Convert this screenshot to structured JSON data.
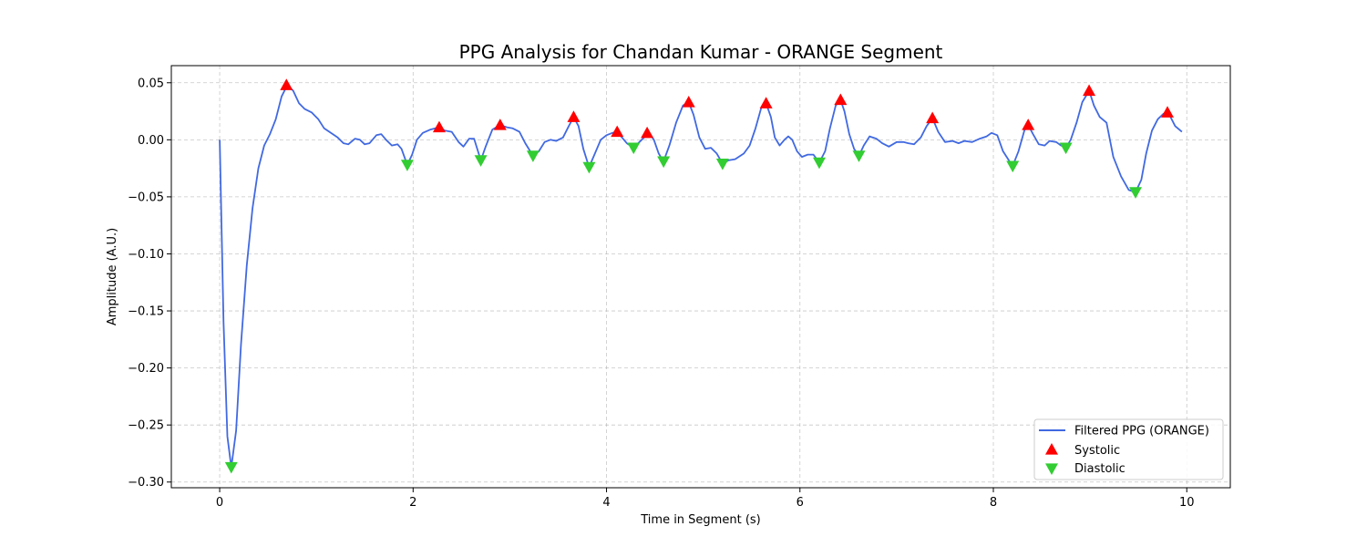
{
  "chart_data": {
    "type": "line",
    "title": "PPG Analysis for Chandan Kumar - ORANGE Segment",
    "xlabel": "Time in Segment (s)",
    "ylabel": "Amplitude (A.U.)",
    "xlim": [
      -0.5,
      10.45
    ],
    "ylim": [
      -0.305,
      0.065
    ],
    "xticks": [
      0,
      2,
      4,
      6,
      8,
      10
    ],
    "xtick_labels": [
      "0",
      "2",
      "4",
      "6",
      "8",
      "10"
    ],
    "yticks": [
      0.05,
      0.0,
      -0.05,
      -0.1,
      -0.15,
      -0.2,
      -0.25,
      -0.3
    ],
    "ytick_labels": [
      "0.05",
      "0.00",
      "−0.05",
      "−0.10",
      "−0.15",
      "−0.20",
      "−0.25",
      "−0.30"
    ],
    "grid": true,
    "legend_position": "lower-right",
    "series": [
      {
        "name": "Filtered PPG (ORANGE)",
        "kind": "line",
        "color": "#4169e1",
        "points": [
          [
            0.0,
            0.0
          ],
          [
            0.04,
            -0.16
          ],
          [
            0.08,
            -0.26
          ],
          [
            0.12,
            -0.287
          ],
          [
            0.17,
            -0.255
          ],
          [
            0.22,
            -0.18
          ],
          [
            0.28,
            -0.11
          ],
          [
            0.34,
            -0.06
          ],
          [
            0.4,
            -0.025
          ],
          [
            0.46,
            -0.005
          ],
          [
            0.52,
            0.005
          ],
          [
            0.58,
            0.018
          ],
          [
            0.64,
            0.038
          ],
          [
            0.7,
            0.048
          ],
          [
            0.76,
            0.043
          ],
          [
            0.82,
            0.032
          ],
          [
            0.88,
            0.027
          ],
          [
            0.95,
            0.024
          ],
          [
            1.02,
            0.018
          ],
          [
            1.08,
            0.01
          ],
          [
            1.15,
            0.006
          ],
          [
            1.22,
            0.002
          ],
          [
            1.28,
            -0.003
          ],
          [
            1.33,
            -0.004
          ],
          [
            1.4,
            0.001
          ],
          [
            1.45,
            0.0
          ],
          [
            1.5,
            -0.004
          ],
          [
            1.55,
            -0.003
          ],
          [
            1.62,
            0.004
          ],
          [
            1.67,
            0.005
          ],
          [
            1.72,
            0.0
          ],
          [
            1.78,
            -0.005
          ],
          [
            1.84,
            -0.004
          ],
          [
            1.88,
            -0.008
          ],
          [
            1.94,
            -0.022
          ],
          [
            1.99,
            -0.013
          ],
          [
            2.04,
            0.0
          ],
          [
            2.1,
            0.006
          ],
          [
            2.18,
            0.009
          ],
          [
            2.27,
            0.011
          ],
          [
            2.33,
            0.008
          ],
          [
            2.4,
            0.007
          ],
          [
            2.47,
            -0.002
          ],
          [
            2.52,
            -0.006
          ],
          [
            2.58,
            0.001
          ],
          [
            2.63,
            0.001
          ],
          [
            2.7,
            -0.018
          ],
          [
            2.75,
            -0.006
          ],
          [
            2.82,
            0.009
          ],
          [
            2.9,
            0.013
          ],
          [
            2.97,
            0.011
          ],
          [
            3.03,
            0.01
          ],
          [
            3.1,
            0.007
          ],
          [
            3.16,
            -0.003
          ],
          [
            3.24,
            -0.014
          ],
          [
            3.3,
            -0.01
          ],
          [
            3.36,
            -0.002
          ],
          [
            3.42,
            0.0
          ],
          [
            3.48,
            -0.001
          ],
          [
            3.55,
            0.002
          ],
          [
            3.61,
            0.012
          ],
          [
            3.66,
            0.02
          ],
          [
            3.71,
            0.012
          ],
          [
            3.76,
            -0.008
          ],
          [
            3.82,
            -0.024
          ],
          [
            3.88,
            -0.012
          ],
          [
            3.94,
            0.0
          ],
          [
            4.0,
            0.004
          ],
          [
            4.06,
            0.006
          ],
          [
            4.11,
            0.007
          ],
          [
            4.16,
            0.002
          ],
          [
            4.21,
            -0.003
          ],
          [
            4.28,
            -0.007
          ],
          [
            4.34,
            -0.002
          ],
          [
            4.4,
            0.003
          ],
          [
            4.44,
            0.006
          ],
          [
            4.49,
            0.0
          ],
          [
            4.54,
            -0.012
          ],
          [
            4.59,
            -0.019
          ],
          [
            4.65,
            -0.005
          ],
          [
            4.72,
            0.015
          ],
          [
            4.79,
            0.03
          ],
          [
            4.85,
            0.033
          ],
          [
            4.9,
            0.022
          ],
          [
            4.96,
            0.002
          ],
          [
            5.02,
            -0.008
          ],
          [
            5.08,
            -0.007
          ],
          [
            5.14,
            -0.012
          ],
          [
            5.2,
            -0.021
          ],
          [
            5.26,
            -0.018
          ],
          [
            5.33,
            -0.017
          ],
          [
            5.42,
            -0.012
          ],
          [
            5.48,
            -0.005
          ],
          [
            5.54,
            0.01
          ],
          [
            5.6,
            0.028
          ],
          [
            5.65,
            0.032
          ],
          [
            5.7,
            0.02
          ],
          [
            5.74,
            0.002
          ],
          [
            5.79,
            -0.005
          ],
          [
            5.84,
            0.0
          ],
          [
            5.88,
            0.003
          ],
          [
            5.92,
            0.0
          ],
          [
            5.97,
            -0.01
          ],
          [
            6.02,
            -0.015
          ],
          [
            6.08,
            -0.013
          ],
          [
            6.14,
            -0.013
          ],
          [
            6.2,
            -0.02
          ],
          [
            6.26,
            -0.01
          ],
          [
            6.31,
            0.01
          ],
          [
            6.37,
            0.03
          ],
          [
            6.42,
            0.035
          ],
          [
            6.46,
            0.025
          ],
          [
            6.51,
            0.005
          ],
          [
            6.56,
            -0.008
          ],
          [
            6.61,
            -0.014
          ],
          [
            6.66,
            -0.005
          ],
          [
            6.72,
            0.003
          ],
          [
            6.79,
            0.001
          ],
          [
            6.85,
            -0.003
          ],
          [
            6.92,
            -0.006
          ],
          [
            7.0,
            -0.002
          ],
          [
            7.07,
            -0.002
          ],
          [
            7.12,
            -0.003
          ],
          [
            7.18,
            -0.004
          ],
          [
            7.25,
            0.002
          ],
          [
            7.31,
            0.012
          ],
          [
            7.37,
            0.019
          ],
          [
            7.43,
            0.007
          ],
          [
            7.5,
            -0.002
          ],
          [
            7.58,
            -0.001
          ],
          [
            7.64,
            -0.003
          ],
          [
            7.7,
            -0.001
          ],
          [
            7.78,
            -0.002
          ],
          [
            7.86,
            0.001
          ],
          [
            7.93,
            0.003
          ],
          [
            7.98,
            0.006
          ],
          [
            8.04,
            0.004
          ],
          [
            8.1,
            -0.01
          ],
          [
            8.16,
            -0.018
          ],
          [
            8.2,
            -0.023
          ],
          [
            8.26,
            -0.01
          ],
          [
            8.32,
            0.008
          ],
          [
            8.36,
            0.013
          ],
          [
            8.41,
            0.005
          ],
          [
            8.47,
            -0.004
          ],
          [
            8.53,
            -0.005
          ],
          [
            8.58,
            -0.001
          ],
          [
            8.65,
            -0.002
          ],
          [
            8.7,
            -0.005
          ],
          [
            8.75,
            -0.007
          ],
          [
            8.8,
            0.0
          ],
          [
            8.86,
            0.015
          ],
          [
            8.92,
            0.033
          ],
          [
            8.99,
            0.043
          ],
          [
            9.04,
            0.03
          ],
          [
            9.1,
            0.02
          ],
          [
            9.17,
            0.015
          ],
          [
            9.24,
            -0.015
          ],
          [
            9.32,
            -0.032
          ],
          [
            9.4,
            -0.044
          ],
          [
            9.47,
            -0.046
          ],
          [
            9.53,
            -0.035
          ],
          [
            9.58,
            -0.012
          ],
          [
            9.64,
            0.008
          ],
          [
            9.7,
            0.018
          ],
          [
            9.76,
            0.023
          ],
          [
            9.82,
            0.022
          ],
          [
            9.88,
            0.012
          ],
          [
            9.95,
            0.007
          ]
        ]
      },
      {
        "name": "Systolic",
        "kind": "marker-up",
        "color": "#ff0000",
        "points": [
          [
            0.69,
            0.048
          ],
          [
            2.27,
            0.011
          ],
          [
            2.9,
            0.013
          ],
          [
            3.66,
            0.02
          ],
          [
            4.11,
            0.007
          ],
          [
            4.42,
            0.006
          ],
          [
            4.85,
            0.033
          ],
          [
            5.65,
            0.032
          ],
          [
            6.42,
            0.035
          ],
          [
            7.37,
            0.019
          ],
          [
            8.36,
            0.013
          ],
          [
            8.99,
            0.043
          ],
          [
            9.8,
            0.024
          ]
        ]
      },
      {
        "name": "Diastolic",
        "kind": "marker-down",
        "color": "#32cd32",
        "points": [
          [
            0.12,
            -0.287
          ],
          [
            1.94,
            -0.022
          ],
          [
            2.7,
            -0.018
          ],
          [
            3.24,
            -0.014
          ],
          [
            3.82,
            -0.024
          ],
          [
            4.28,
            -0.007
          ],
          [
            4.59,
            -0.019
          ],
          [
            5.2,
            -0.021
          ],
          [
            6.2,
            -0.02
          ],
          [
            6.61,
            -0.014
          ],
          [
            8.2,
            -0.023
          ],
          [
            8.75,
            -0.007
          ],
          [
            9.47,
            -0.046
          ]
        ]
      }
    ]
  }
}
